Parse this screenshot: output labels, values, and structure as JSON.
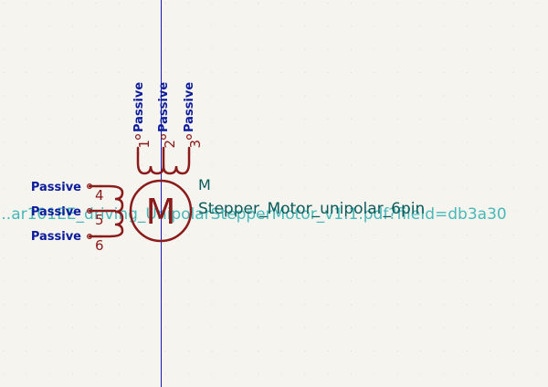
{
  "component": {
    "reference": "M",
    "value": "Stepper_Motor_unipolar_6pin",
    "datasheet": "...ar101EE_driving_UnipolarStepperMotor_v1.1.pdf?fileId=db3a30",
    "body_glyph": "M"
  },
  "pins": [
    {
      "number": "1",
      "type": "Passive"
    },
    {
      "number": "2",
      "type": "Passive"
    },
    {
      "number": "3",
      "type": "Passive"
    },
    {
      "number": "4",
      "type": "Passive"
    },
    {
      "number": "5",
      "type": "Passive"
    },
    {
      "number": "6",
      "type": "Passive"
    }
  ],
  "colors": {
    "background": "#f5f4ef",
    "grid_dot": "#c9c8c2",
    "symbol": "#8b1a1a",
    "pin_type": "#0b1b9a",
    "field_text": "#0c5a5a",
    "datasheet_text": "#49b8b8",
    "crosshair": "#1a1ab0"
  }
}
